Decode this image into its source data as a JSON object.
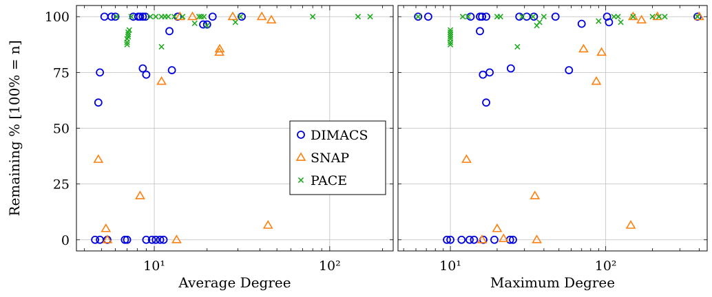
{
  "chart_data": [
    {
      "type": "scatter",
      "xlabel": "Average Degree",
      "ylabel": "Remaining % [100% = n]",
      "xscale": "log",
      "xlim": [
        3.6,
        230
      ],
      "ylim": [
        -5,
        105
      ],
      "xticks": [
        {
          "value": 10,
          "label": "10¹"
        },
        {
          "value": 100,
          "label": "10²"
        }
      ],
      "yticks": [
        0,
        25,
        50,
        75,
        100
      ],
      "grid": true,
      "legend": {
        "placement": "right-center",
        "entries": [
          "DIMACS",
          "SNAP",
          "PACE"
        ]
      },
      "series": [
        {
          "name": "DIMACS",
          "marker": "circle",
          "color": "#0000dd",
          "points": [
            [
              4.6,
              0
            ],
            [
              4.9,
              0
            ],
            [
              5.4,
              0
            ],
            [
              6.8,
              0
            ],
            [
              7.0,
              0
            ],
            [
              9.0,
              0
            ],
            [
              9.7,
              0
            ],
            [
              10.2,
              0
            ],
            [
              10.8,
              0
            ],
            [
              11.3,
              0
            ],
            [
              4.8,
              61.5
            ],
            [
              4.9,
              75
            ],
            [
              5.2,
              100
            ],
            [
              5.7,
              100
            ],
            [
              6.0,
              100
            ],
            [
              7.6,
              100
            ],
            [
              8.1,
              100
            ],
            [
              8.3,
              100
            ],
            [
              8.6,
              100
            ],
            [
              8.9,
              100
            ],
            [
              8.6,
              76.8
            ],
            [
              9.0,
              74
            ],
            [
              12.2,
              93.5
            ],
            [
              12.6,
              76
            ],
            [
              13.6,
              100
            ],
            [
              19.0,
              96.5
            ],
            [
              20.0,
              96.5
            ],
            [
              21.5,
              100
            ],
            [
              31.5,
              100
            ]
          ]
        },
        {
          "name": "SNAP",
          "marker": "triangle",
          "color": "#ff7f0e",
          "points": [
            [
              4.8,
              36
            ],
            [
              5.3,
              5
            ],
            [
              5.4,
              0
            ],
            [
              8.3,
              19.7
            ],
            [
              11.0,
              71
            ],
            [
              13.4,
              0
            ],
            [
              14.0,
              100
            ],
            [
              16.5,
              100
            ],
            [
              23.5,
              84
            ],
            [
              23.6,
              85.5
            ],
            [
              28.0,
              100
            ],
            [
              41.0,
              100
            ],
            [
              44.5,
              6.5
            ],
            [
              46.5,
              98.5
            ]
          ]
        },
        {
          "name": "PACE",
          "marker": "cross",
          "color": "#22aa22",
          "points": [
            [
              6.1,
              100
            ],
            [
              7.0,
              87.5
            ],
            [
              7.0,
              88.5
            ],
            [
              7.0,
              90
            ],
            [
              7.1,
              91
            ],
            [
              7.1,
              92
            ],
            [
              7.1,
              93
            ],
            [
              7.2,
              94
            ],
            [
              7.4,
              100
            ],
            [
              9.5,
              100
            ],
            [
              10.2,
              100
            ],
            [
              11.0,
              100
            ],
            [
              11.0,
              86.5
            ],
            [
              11.5,
              100
            ],
            [
              12.0,
              100
            ],
            [
              13.0,
              100
            ],
            [
              14.5,
              100
            ],
            [
              17.0,
              97
            ],
            [
              18.0,
              100
            ],
            [
              18.5,
              100
            ],
            [
              19.2,
              100
            ],
            [
              20.0,
              96
            ],
            [
              29.0,
              97.5
            ],
            [
              31.0,
              100
            ],
            [
              80.0,
              100
            ],
            [
              145.0,
              100
            ],
            [
              170.0,
              100
            ]
          ]
        }
      ]
    },
    {
      "type": "scatter",
      "xlabel": "Maximum Degree",
      "ylabel": "",
      "xscale": "log",
      "xlim": [
        4.6,
        450
      ],
      "ylim": [
        -5,
        105
      ],
      "xticks": [
        {
          "value": 10,
          "label": "10¹"
        },
        {
          "value": 100,
          "label": "10²"
        }
      ],
      "yticks": [
        0,
        25,
        50,
        75,
        100
      ],
      "grid": true,
      "series": [
        {
          "name": "DIMACS",
          "marker": "circle",
          "color": "#0000dd",
          "points": [
            [
              6.2,
              100
            ],
            [
              7.2,
              100
            ],
            [
              9.5,
              0
            ],
            [
              10.0,
              0
            ],
            [
              11.8,
              0
            ],
            [
              13.3,
              0
            ],
            [
              14.2,
              0
            ],
            [
              16.3,
              0
            ],
            [
              19.2,
              0
            ],
            [
              24.2,
              0
            ],
            [
              25.3,
              0
            ],
            [
              13.5,
              100
            ],
            [
              15.5,
              100
            ],
            [
              16.0,
              100
            ],
            [
              17.0,
              100
            ],
            [
              15.5,
              93.5
            ],
            [
              16.2,
              74
            ],
            [
              17.9,
              75
            ],
            [
              17.0,
              61.5
            ],
            [
              24.5,
              76.8
            ],
            [
              27.8,
              100
            ],
            [
              31.0,
              100
            ],
            [
              34.5,
              100
            ],
            [
              47.5,
              100
            ],
            [
              58.0,
              76
            ],
            [
              70.0,
              96.8
            ],
            [
              102.0,
              100
            ],
            [
              105.0,
              97.5
            ],
            [
              390.0,
              100
            ]
          ]
        },
        {
          "name": "SNAP",
          "marker": "triangle",
          "color": "#ff7f0e",
          "points": [
            [
              12.7,
              36
            ],
            [
              16.0,
              0
            ],
            [
              20.0,
              5
            ],
            [
              22.0,
              0.5
            ],
            [
              35.0,
              19.7
            ],
            [
              36.0,
              0
            ],
            [
              72.0,
              85.5
            ],
            [
              87.0,
              71
            ],
            [
              94.0,
              84
            ],
            [
              145.0,
              6.5
            ],
            [
              150.0,
              100
            ],
            [
              170.0,
              98.5
            ],
            [
              215.0,
              100
            ],
            [
              400.0,
              100
            ]
          ]
        },
        {
          "name": "PACE",
          "marker": "cross",
          "color": "#22aa22",
          "points": [
            [
              6.2,
              100
            ],
            [
              10.0,
              87.5
            ],
            [
              10.0,
              88.5
            ],
            [
              10.0,
              90
            ],
            [
              10.0,
              91
            ],
            [
              10.0,
              92
            ],
            [
              10.0,
              93
            ],
            [
              10.0,
              94
            ],
            [
              12.0,
              100
            ],
            [
              13.0,
              100
            ],
            [
              20.0,
              100
            ],
            [
              21.0,
              100
            ],
            [
              27.0,
              86.5
            ],
            [
              29.0,
              100
            ],
            [
              34.0,
              100
            ],
            [
              36.0,
              96
            ],
            [
              37.5,
              97.5
            ],
            [
              40.0,
              100
            ],
            [
              90.0,
              98
            ],
            [
              113.0,
              100
            ],
            [
              120.0,
              100
            ],
            [
              125.0,
              97.5
            ],
            [
              150.0,
              100
            ],
            [
              200.0,
              100
            ],
            [
              220.0,
              100
            ],
            [
              240.0,
              100
            ],
            [
              390.0,
              100
            ]
          ]
        }
      ]
    }
  ]
}
